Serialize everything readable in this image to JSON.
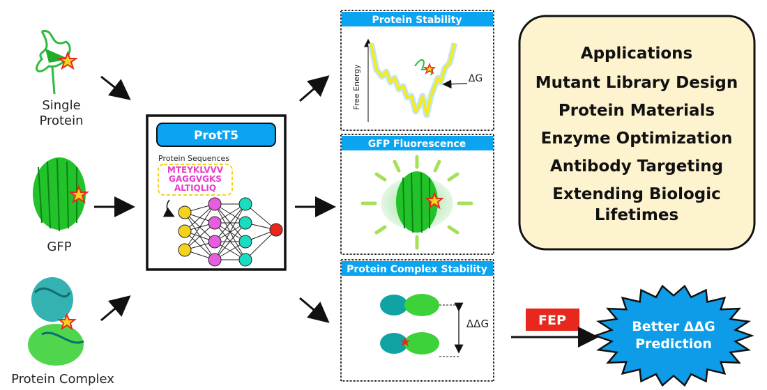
{
  "inputs": {
    "single_protein": [
      "Single",
      "Protein"
    ],
    "gfp": "GFP",
    "protein_complex": "Protein Complex"
  },
  "model": {
    "title": "ProtT5",
    "sequences_label": "Protein Sequences",
    "sequences": [
      "MTEYKLVVV",
      "GAGGVGKS",
      "ALTIQLIQ"
    ]
  },
  "panels": {
    "stability": {
      "title": "Protein Stability",
      "ylabel": "Free Energy",
      "annotation": "ΔG"
    },
    "gfp": {
      "title": "GFP Fluorescence"
    },
    "complex": {
      "title": "Protein Complex Stability",
      "annotation": "ΔΔG"
    }
  },
  "applications": {
    "title": "Applications",
    "items": [
      "Mutant Library Design",
      "Protein Materials",
      "Enzyme Optimization",
      "Antibody Targeting",
      "Extending Biologic",
      "Lifetimes"
    ]
  },
  "fep": {
    "label": "FEP"
  },
  "result": {
    "lines": [
      "Better ΔΔG",
      "Prediction"
    ]
  },
  "colors": {
    "header_blue": "#0aa4f0",
    "applications_bg": "#fdf3cf",
    "fep_red": "#e8281c",
    "burst_blue": "#0e9ce8",
    "protein_green": "#22c22a",
    "complex_teal": "#11a3a3"
  }
}
